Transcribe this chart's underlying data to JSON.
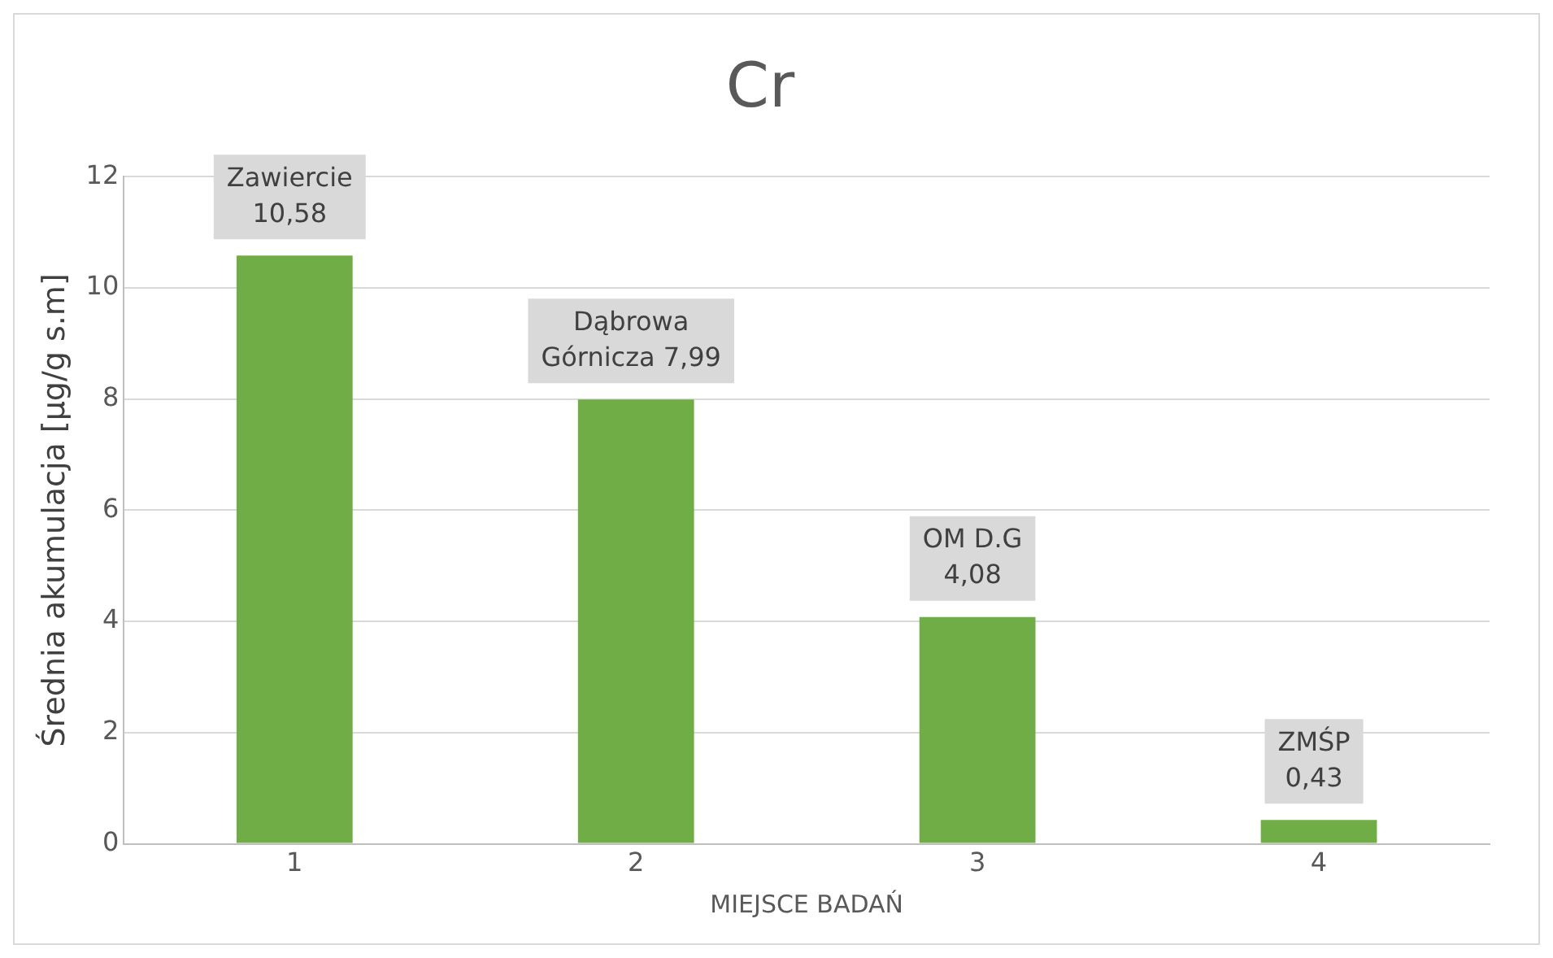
{
  "chart_data": {
    "type": "bar",
    "title": "Cr",
    "xlabel": "MIEJSCE BADAŃ",
    "ylabel": "Średnia akumulacja [µg/g s.m]",
    "categories": [
      "1",
      "2",
      "3",
      "4"
    ],
    "values": [
      10.58,
      7.99,
      4.08,
      0.43
    ],
    "value_labels": [
      "Zawiercie\n10,58",
      "Dąbrowa\nGórnicza 7,99",
      "OM D.G\n4,08",
      "ZMŚP\n0,43"
    ],
    "color": "#70ad47",
    "ylim": [
      0,
      12
    ],
    "yticks": [
      0,
      2,
      4,
      6,
      8,
      10,
      12
    ],
    "grid": "y",
    "legend": false
  }
}
